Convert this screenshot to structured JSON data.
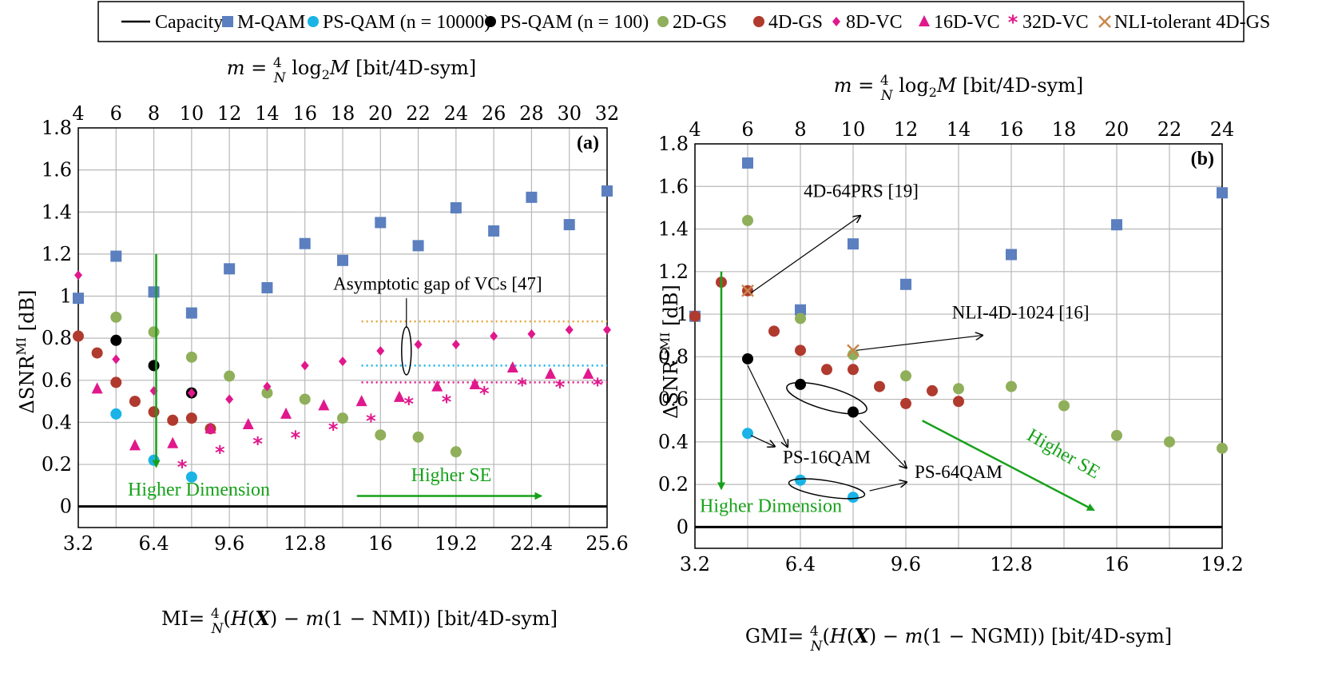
{
  "legend": {
    "items": [
      {
        "label": "Capacity",
        "kind": "line",
        "color": "#000000"
      },
      {
        "label": "M-QAM",
        "kind": "square",
        "color": "#5b7fbf"
      },
      {
        "label": "PS-QAM (n = 10000)",
        "kind": "circle",
        "color": "#1ab3e6"
      },
      {
        "label": "PS-QAM (n = 100)",
        "kind": "circle",
        "color": "#000000"
      },
      {
        "label": "2D-GS",
        "kind": "circle",
        "color": "#8faf5a"
      },
      {
        "label": "4D-GS",
        "kind": "circle",
        "color": "#b03a2e"
      },
      {
        "label": "8D-VC",
        "kind": "diamond",
        "color": "#e0188c"
      },
      {
        "label": "16D-VC",
        "kind": "triangle",
        "color": "#e0188c"
      },
      {
        "label": "32D-VC",
        "kind": "star",
        "color": "#e0188c"
      },
      {
        "label": "NLI-tolerant 4D-GS",
        "kind": "cross",
        "color": "#c8874a"
      }
    ]
  },
  "chart_data": [
    {
      "type": "scatter",
      "panel": "(a)",
      "xlabel": "MI= 4/N (H(X) − m(1 − NMI)) [bit/4D-sym]",
      "ylabel": "ΔSNR^MI [dB]",
      "top_xlabel": "m = 4/N log2 M [bit/4D-sym]",
      "xlim": [
        3.2,
        25.6
      ],
      "ylim": [
        -0.1,
        1.8
      ],
      "xticks": [
        3.2,
        6.4,
        9.6,
        12.8,
        16,
        19.2,
        22.4,
        25.6
      ],
      "xtick_labels": [
        "3.2",
        "6.4",
        "9.6",
        "12.8",
        "16",
        "19.2",
        "22.4",
        "25.6"
      ],
      "yticks": [
        0,
        0.2,
        0.4,
        0.6,
        0.8,
        1,
        1.2,
        1.4,
        1.6,
        1.8
      ],
      "ytick_labels": [
        "0",
        "0.2",
        "0.4",
        "0.6",
        "0.8",
        "1",
        "1.2",
        "1.4",
        "1.6",
        "1.8"
      ],
      "top_ticks": [
        "4",
        "6",
        "8",
        "10",
        "12",
        "14",
        "16",
        "18",
        "20",
        "22",
        "24",
        "26",
        "28",
        "30",
        "32"
      ],
      "grid": true,
      "series": [
        {
          "name": "M-QAM",
          "points": [
            [
              3.2,
              0.99
            ],
            [
              4.8,
              1.19
            ],
            [
              6.4,
              1.02
            ],
            [
              8.0,
              0.92
            ],
            [
              9.6,
              1.13
            ],
            [
              11.2,
              1.04
            ],
            [
              12.8,
              1.25
            ],
            [
              14.4,
              1.17
            ],
            [
              16.0,
              1.35
            ],
            [
              17.6,
              1.24
            ],
            [
              19.2,
              1.42
            ],
            [
              20.8,
              1.31
            ],
            [
              22.4,
              1.47
            ],
            [
              24.0,
              1.34
            ],
            [
              25.6,
              1.5
            ]
          ]
        },
        {
          "name": "PS-QAM (n = 10000)",
          "points": [
            [
              4.8,
              0.44
            ],
            [
              6.4,
              0.22
            ],
            [
              8.0,
              0.14
            ]
          ]
        },
        {
          "name": "PS-QAM (n = 100)",
          "points": [
            [
              4.8,
              0.79
            ],
            [
              6.4,
              0.67
            ],
            [
              8.0,
              0.54
            ]
          ]
        },
        {
          "name": "2D-GS",
          "points": [
            [
              4.8,
              0.9
            ],
            [
              6.4,
              0.83
            ],
            [
              8.0,
              0.71
            ],
            [
              9.6,
              0.62
            ],
            [
              11.2,
              0.54
            ],
            [
              12.8,
              0.51
            ],
            [
              14.4,
              0.42
            ],
            [
              16.0,
              0.34
            ],
            [
              17.6,
              0.33
            ],
            [
              19.2,
              0.26
            ]
          ]
        },
        {
          "name": "4D-GS",
          "points": [
            [
              3.2,
              0.81
            ],
            [
              4.0,
              0.73
            ],
            [
              4.8,
              0.59
            ],
            [
              5.6,
              0.5
            ],
            [
              6.4,
              0.45
            ],
            [
              7.2,
              0.41
            ],
            [
              8.0,
              0.42
            ],
            [
              8.8,
              0.37
            ]
          ]
        },
        {
          "name": "8D-VC",
          "points": [
            [
              3.2,
              1.1
            ],
            [
              4.8,
              0.7
            ],
            [
              6.4,
              0.55
            ],
            [
              8.0,
              0.54
            ],
            [
              9.6,
              0.51
            ],
            [
              11.2,
              0.57
            ],
            [
              12.8,
              0.67
            ],
            [
              14.4,
              0.69
            ],
            [
              16.0,
              0.74
            ],
            [
              17.6,
              0.77
            ],
            [
              19.2,
              0.77
            ],
            [
              20.8,
              0.81
            ],
            [
              22.4,
              0.82
            ],
            [
              24.0,
              0.84
            ],
            [
              25.6,
              0.84
            ]
          ]
        },
        {
          "name": "16D-VC",
          "points": [
            [
              4.0,
              0.56
            ],
            [
              5.6,
              0.29
            ],
            [
              7.2,
              0.3
            ],
            [
              8.8,
              0.37
            ],
            [
              10.4,
              0.39
            ],
            [
              12.0,
              0.44
            ],
            [
              13.6,
              0.48
            ],
            [
              15.2,
              0.5
            ],
            [
              16.8,
              0.52
            ],
            [
              18.4,
              0.57
            ],
            [
              20.0,
              0.58
            ],
            [
              21.6,
              0.66
            ],
            [
              23.2,
              0.63
            ],
            [
              24.8,
              0.63
            ]
          ]
        },
        {
          "name": "32D-VC",
          "points": [
            [
              7.6,
              0.19
            ],
            [
              9.2,
              0.26
            ],
            [
              10.8,
              0.3
            ],
            [
              12.4,
              0.33
            ],
            [
              14.0,
              0.37
            ],
            [
              15.6,
              0.41
            ],
            [
              17.2,
              0.49
            ],
            [
              18.8,
              0.5
            ],
            [
              20.4,
              0.54
            ],
            [
              22.0,
              0.58
            ],
            [
              23.6,
              0.57
            ],
            [
              25.2,
              0.58
            ]
          ]
        }
      ],
      "reference_lines": [
        {
          "name": "Capacity",
          "y": 0,
          "color": "#000000"
        },
        {
          "y": 0.88,
          "x_from": 15.2,
          "x_to": 25.6,
          "color": "#e3a33a",
          "style": "dotted"
        },
        {
          "y": 0.67,
          "x_from": 15.2,
          "x_to": 25.6,
          "color": "#1ab3e6",
          "style": "dotted"
        },
        {
          "y": 0.59,
          "x_from": 15.2,
          "x_to": 25.6,
          "color": "#e0188c",
          "style": "dotted"
        }
      ],
      "annotations": {
        "panel_label": "(a)",
        "asymptotic": "Asymptotic gap of VCs [47]",
        "higher_dimension": "Higher Dimension",
        "higher_se": "Higher SE"
      }
    },
    {
      "type": "scatter",
      "panel": "(b)",
      "xlabel": "GMI= 4/N (H(X) − m(1 − NGMI)) [bit/4D-sym]",
      "ylabel": "ΔSNR^GMI [dB]",
      "top_xlabel": "m = 4/N log2 M [bit/4D-sym]",
      "xlim": [
        3.2,
        19.2
      ],
      "ylim": [
        -0.1,
        1.8
      ],
      "xticks": [
        3.2,
        6.4,
        9.6,
        12.8,
        16,
        19.2
      ],
      "xtick_labels": [
        "3.2",
        "6.4",
        "9.6",
        "12.8",
        "16",
        "19.2"
      ],
      "yticks": [
        0,
        0.2,
        0.4,
        0.6,
        0.8,
        1,
        1.2,
        1.4,
        1.6,
        1.8
      ],
      "ytick_labels": [
        "0",
        "0.2",
        "0.4",
        "0.6",
        "0.8",
        "1",
        "1.2",
        "1.4",
        "1.6",
        "1.8"
      ],
      "top_ticks": [
        "4",
        "6",
        "8",
        "10",
        "12",
        "14",
        "16",
        "18",
        "20",
        "22",
        "24"
      ],
      "grid": true,
      "series": [
        {
          "name": "M-QAM",
          "points": [
            [
              3.2,
              0.99
            ],
            [
              4.8,
              1.71
            ],
            [
              6.4,
              1.02
            ],
            [
              8.0,
              1.33
            ],
            [
              9.6,
              1.14
            ],
            [
              12.8,
              1.28
            ],
            [
              16.0,
              1.42
            ],
            [
              19.2,
              1.57
            ]
          ]
        },
        {
          "name": "PS-QAM (n = 10000)",
          "points": [
            [
              4.8,
              0.44
            ],
            [
              6.4,
              0.22
            ],
            [
              8.0,
              0.14
            ]
          ]
        },
        {
          "name": "PS-QAM (n = 100)",
          "points": [
            [
              4.8,
              0.79
            ],
            [
              6.4,
              0.67
            ],
            [
              8.0,
              0.54
            ]
          ]
        },
        {
          "name": "2D-GS",
          "points": [
            [
              4.8,
              1.44
            ],
            [
              6.4,
              0.98
            ],
            [
              8.0,
              0.81
            ],
            [
              9.6,
              0.71
            ],
            [
              11.2,
              0.65
            ],
            [
              12.8,
              0.66
            ],
            [
              14.4,
              0.57
            ],
            [
              16.0,
              0.43
            ],
            [
              17.6,
              0.4
            ],
            [
              19.2,
              0.37
            ]
          ]
        },
        {
          "name": "4D-GS",
          "points": [
            [
              3.2,
              0.99
            ],
            [
              4.0,
              1.15
            ],
            [
              4.8,
              1.11
            ],
            [
              5.6,
              0.92
            ],
            [
              6.4,
              0.83
            ],
            [
              7.2,
              0.74
            ],
            [
              8.0,
              0.74
            ],
            [
              8.8,
              0.66
            ],
            [
              9.6,
              0.58
            ],
            [
              10.4,
              0.64
            ],
            [
              11.2,
              0.59
            ]
          ]
        },
        {
          "name": "NLI-tolerant 4D-GS",
          "points": [
            [
              4.8,
              1.11
            ],
            [
              8.0,
              0.83
            ]
          ]
        }
      ],
      "reference_lines": [
        {
          "name": "Capacity",
          "y": 0,
          "color": "#000000"
        }
      ],
      "annotations": {
        "panel_label": "(b)",
        "prs": "4D-64PRS [19]",
        "nli": "NLI-4D-1024 [16]",
        "ps16": "PS-16QAM",
        "ps64": "PS-64QAM",
        "higher_dimension": "Higher Dimension",
        "higher_se": "Higher SE"
      }
    }
  ]
}
